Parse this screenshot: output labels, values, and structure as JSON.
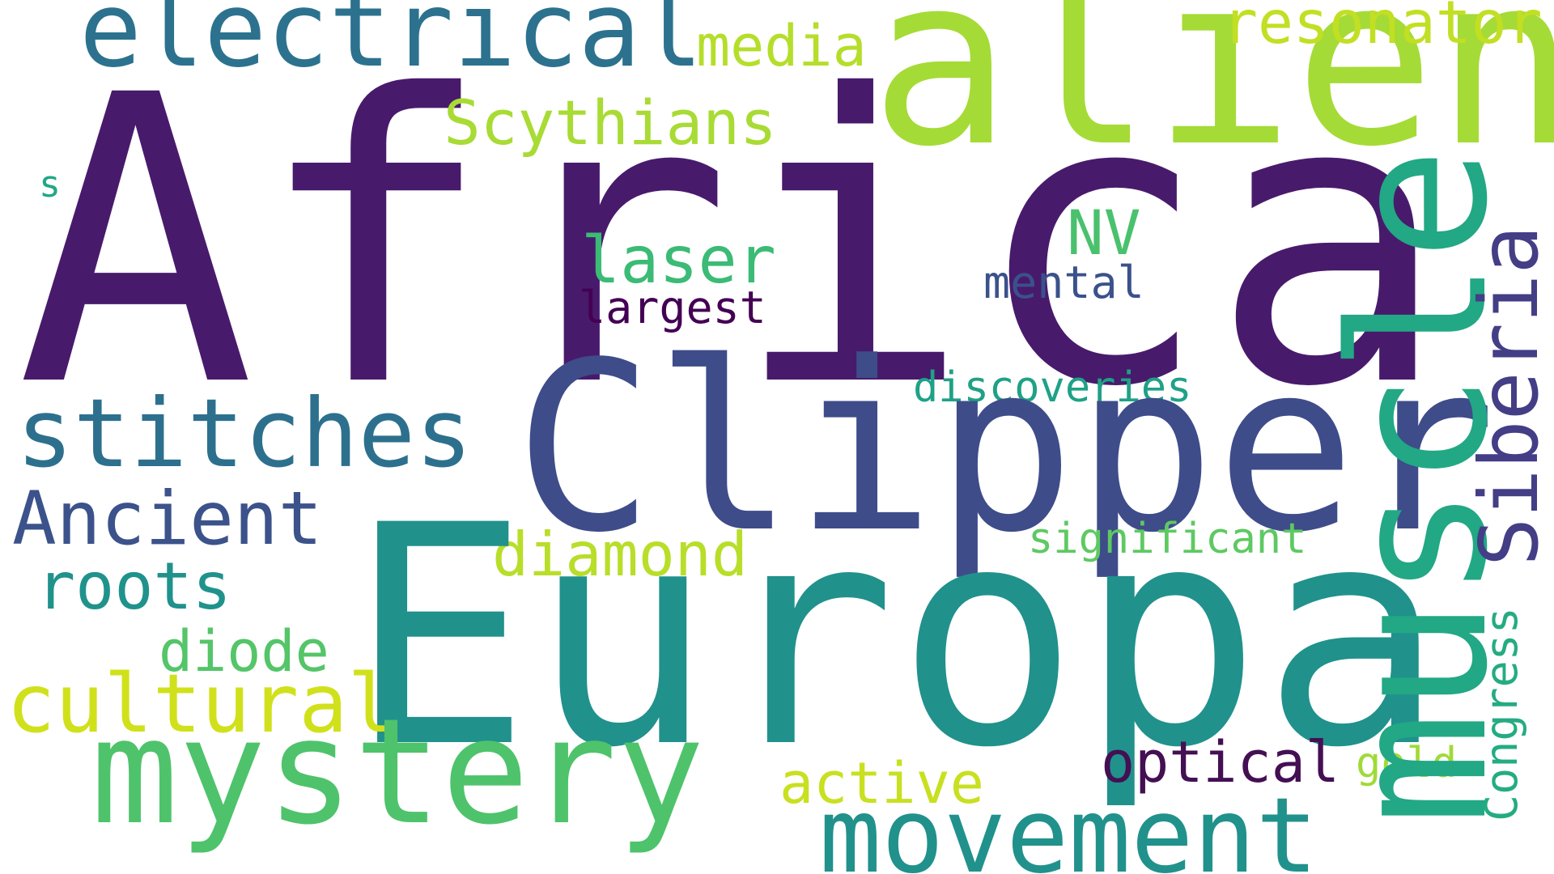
{
  "words": {
    "africa": {
      "text": "Africa",
      "color": "#481a6c"
    },
    "alien": {
      "text": "alien",
      "color": "#a5db36"
    },
    "electrical": {
      "text": "electrical",
      "color": "#2c728e"
    },
    "media": {
      "text": "media",
      "color": "#b5de2b"
    },
    "resonator": {
      "text": "resonator",
      "color": "#c2df23"
    },
    "scythians": {
      "text": "Scythians",
      "color": "#a8db34"
    },
    "s": {
      "text": "s",
      "color": "#22a785"
    },
    "nv": {
      "text": "NV",
      "color": "#4ac16d"
    },
    "laser": {
      "text": "laser",
      "color": "#3bbb75"
    },
    "mental": {
      "text": "mental",
      "color": "#3b518b"
    },
    "largest": {
      "text": "largest",
      "color": "#440154"
    },
    "discoveries": {
      "text": "discoveries",
      "color": "#1fa187"
    },
    "stitches": {
      "text": "stitches",
      "color": "#2d708e"
    },
    "clipper": {
      "text": "Clipper",
      "color": "#3e4c8a"
    },
    "ancient": {
      "text": "Ancient",
      "color": "#3b528b"
    },
    "significant": {
      "text": "significant",
      "color": "#5ec962"
    },
    "diamond": {
      "text": "diamond",
      "color": "#b8de29"
    },
    "roots": {
      "text": "roots",
      "color": "#20928c"
    },
    "europa": {
      "text": "Europa",
      "color": "#21918c"
    },
    "diode": {
      "text": "diode",
      "color": "#54c568"
    },
    "cultural": {
      "text": "cultural",
      "color": "#d0e11c"
    },
    "mystery": {
      "text": "mystery",
      "color": "#4ec36b"
    },
    "active": {
      "text": "active",
      "color": "#c8e020"
    },
    "optical": {
      "text": "optical",
      "color": "#440f53"
    },
    "gold": {
      "text": "gold",
      "color": "#a0da39"
    },
    "movement": {
      "text": "movement",
      "color": "#21918c"
    },
    "muscle": {
      "text": "muscle",
      "color": "#22a884"
    },
    "siberia": {
      "text": "Siberia",
      "color": "#433e85"
    },
    "congress": {
      "text": "Congress",
      "color": "#25ab82"
    }
  }
}
